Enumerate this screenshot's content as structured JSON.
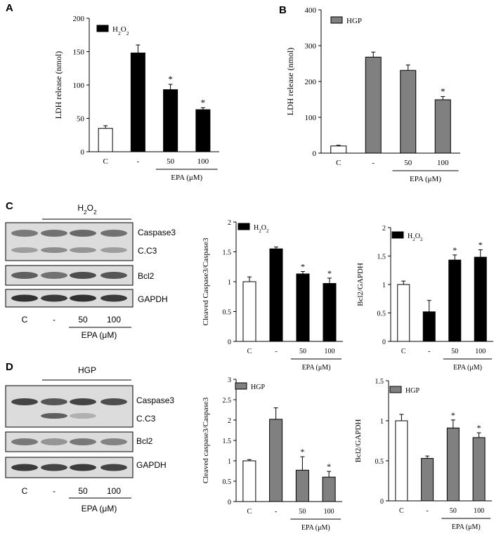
{
  "panel_labels": [
    "A",
    "B",
    "C",
    "D"
  ],
  "colors": {
    "control": "#ffffff",
    "h2o2": "#000000",
    "hgp": "#808080",
    "axis": "#000000"
  },
  "blots": [
    {
      "treatment_label": "H2O2",
      "bands": [
        "Caspase3",
        "C.C3",
        "Bcl2",
        "GAPDH"
      ],
      "lanes": [
        "C",
        "-",
        "50",
        "100"
      ],
      "group_label": "EPA (μM)"
    },
    {
      "treatment_label": "HGP",
      "bands": [
        "Caspase3",
        "C.C3",
        "Bcl2",
        "GAPDH"
      ],
      "lanes": [
        "C",
        "-",
        "50",
        "100"
      ],
      "group_label": "EPA (μM)"
    }
  ],
  "chart_data": [
    {
      "type": "bar",
      "panel": "A",
      "ylabel": "LDH release (nmol)",
      "legend": "H2O2",
      "categories": [
        "C",
        "-",
        "50",
        "100"
      ],
      "group_label": "EPA (μM)",
      "ylim": [
        0,
        200
      ],
      "yticks": [
        0,
        50,
        100,
        150,
        200
      ],
      "values": [
        35,
        148,
        93,
        63
      ],
      "errors": [
        4,
        12,
        8,
        3
      ],
      "significant": [
        false,
        false,
        true,
        true
      ],
      "colors": [
        "#ffffff",
        "#000000",
        "#000000",
        "#000000"
      ]
    },
    {
      "type": "bar",
      "panel": "B",
      "ylabel": "LDH release (nmol)",
      "legend": "HGP",
      "categories": [
        "C",
        "-",
        "50",
        "100"
      ],
      "group_label": "EPA (μM)",
      "ylim": [
        0,
        400
      ],
      "yticks": [
        0,
        100,
        200,
        300,
        400
      ],
      "values": [
        20,
        268,
        231,
        149
      ],
      "errors": [
        2,
        14,
        15,
        9
      ],
      "significant": [
        false,
        false,
        false,
        true
      ],
      "colors": [
        "#ffffff",
        "#808080",
        "#808080",
        "#808080"
      ]
    },
    {
      "type": "bar",
      "panel": "C-1",
      "ylabel": "Cleaved Caspase3/Caspase3",
      "legend": "H2O2",
      "categories": [
        "C",
        "-",
        "50",
        "100"
      ],
      "group_label": "EPA (μM)",
      "ylim": [
        0,
        2
      ],
      "yticks": [
        0,
        0.5,
        1,
        1.5,
        2
      ],
      "values": [
        1.0,
        1.55,
        1.13,
        0.97
      ],
      "errors": [
        0.08,
        0.03,
        0.04,
        0.09
      ],
      "significant": [
        false,
        false,
        true,
        true
      ],
      "colors": [
        "#ffffff",
        "#000000",
        "#000000",
        "#000000"
      ]
    },
    {
      "type": "bar",
      "panel": "C-2",
      "ylabel": "Bcl2/GAPDH",
      "legend": "H2O2",
      "categories": [
        "C",
        "-",
        "50",
        "100"
      ],
      "group_label": "EPA (μM)",
      "ylim": [
        0,
        2
      ],
      "yticks": [
        0,
        0.5,
        1,
        1.5,
        2
      ],
      "values": [
        1.0,
        0.52,
        1.43,
        1.48
      ],
      "errors": [
        0.06,
        0.2,
        0.09,
        0.13
      ],
      "significant": [
        false,
        false,
        true,
        true
      ],
      "colors": [
        "#ffffff",
        "#000000",
        "#000000",
        "#000000"
      ]
    },
    {
      "type": "bar",
      "panel": "D-1",
      "ylabel": "Cleaved caspase3/Caspase3",
      "legend": "HGP",
      "categories": [
        "C",
        "-",
        "50",
        "100"
      ],
      "group_label": "EPA (μM)",
      "ylim": [
        0,
        3
      ],
      "yticks": [
        0,
        0.5,
        1,
        1.5,
        2,
        2.5,
        3
      ],
      "values": [
        1.0,
        2.02,
        0.77,
        0.6
      ],
      "errors": [
        0.03,
        0.28,
        0.33,
        0.14
      ],
      "significant": [
        false,
        false,
        true,
        true
      ],
      "colors": [
        "#ffffff",
        "#808080",
        "#808080",
        "#808080"
      ]
    },
    {
      "type": "bar",
      "panel": "D-2",
      "ylabel": "Bcl2/GAPDH",
      "legend": "HGP",
      "categories": [
        "C",
        "-",
        "50",
        "100"
      ],
      "group_label": "EPA (μM)",
      "ylim": [
        0,
        1.5
      ],
      "yticks": [
        0,
        0.5,
        1,
        1.5
      ],
      "values": [
        1.0,
        0.53,
        0.91,
        0.79
      ],
      "errors": [
        0.08,
        0.03,
        0.1,
        0.06
      ],
      "significant": [
        false,
        false,
        true,
        true
      ],
      "colors": [
        "#ffffff",
        "#808080",
        "#808080",
        "#808080"
      ]
    }
  ]
}
